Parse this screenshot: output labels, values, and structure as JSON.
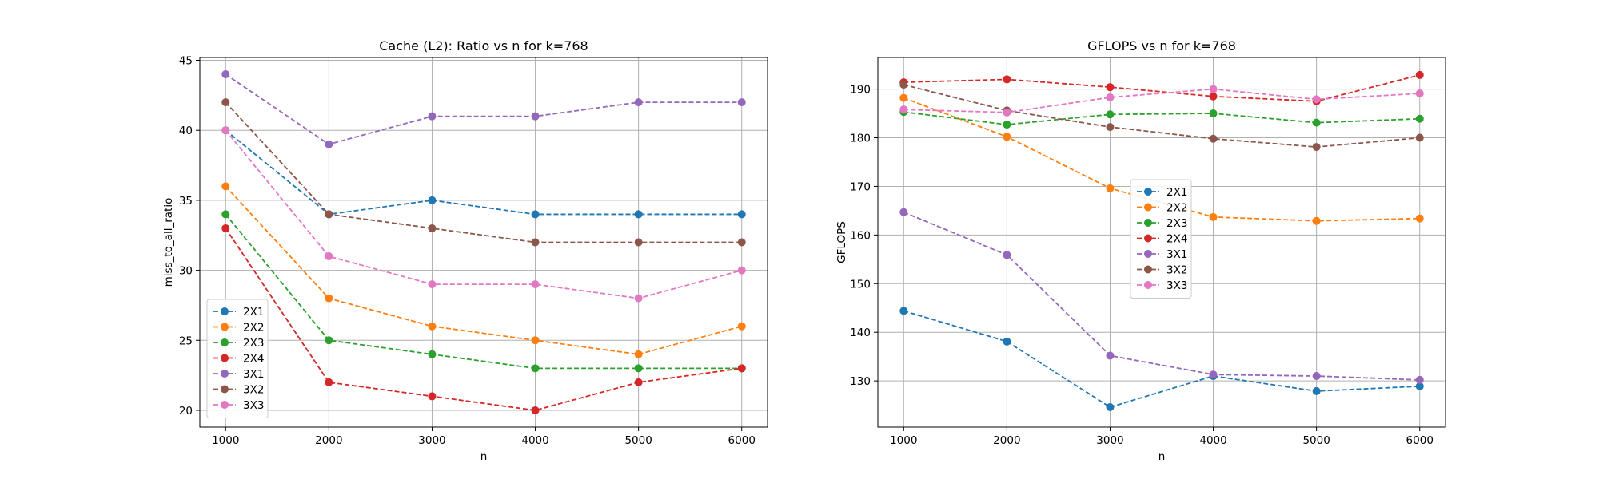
{
  "chart_data": [
    {
      "type": "line",
      "title": "Cache (L2): Ratio vs n for k=768",
      "xlabel": "n",
      "ylabel": "miss_to_all_ratio",
      "x": [
        1000,
        2000,
        3000,
        4000,
        5000,
        6000
      ],
      "xlim": [
        750,
        6250
      ],
      "ylim": [
        18.8,
        45.2
      ],
      "yticks": [
        20,
        25,
        30,
        35,
        40,
        45
      ],
      "grid": true,
      "legend": "lower-left",
      "series": [
        {
          "name": "2X1",
          "color": "#1f77b4",
          "values": [
            40,
            34,
            35,
            34,
            34,
            34
          ]
        },
        {
          "name": "2X2",
          "color": "#ff7f0e",
          "values": [
            36,
            28,
            26,
            25,
            24,
            26
          ]
        },
        {
          "name": "2X3",
          "color": "#2ca02c",
          "values": [
            34,
            25,
            24,
            23,
            23,
            23
          ]
        },
        {
          "name": "2X4",
          "color": "#d62728",
          "values": [
            33,
            22,
            21,
            20,
            22,
            23
          ]
        },
        {
          "name": "3X1",
          "color": "#9467bd",
          "values": [
            44,
            39,
            41,
            41,
            42,
            42
          ]
        },
        {
          "name": "3X2",
          "color": "#8c564b",
          "values": [
            42,
            34,
            33,
            32,
            32,
            32
          ]
        },
        {
          "name": "3X3",
          "color": "#e377c2",
          "values": [
            40,
            31,
            29,
            29,
            28,
            30
          ]
        }
      ]
    },
    {
      "type": "line",
      "title": "GFLOPS vs n for k=768",
      "xlabel": "n",
      "ylabel": "GFLOPS",
      "x": [
        1000,
        2000,
        3000,
        4000,
        5000,
        6000
      ],
      "xlim": [
        750,
        6250
      ],
      "ylim": [
        120.5,
        196.5
      ],
      "yticks": [
        130,
        140,
        150,
        160,
        170,
        180,
        190
      ],
      "grid": true,
      "legend": "center",
      "series": [
        {
          "name": "2X1",
          "color": "#1f77b4",
          "values": [
            144.4,
            138.1,
            124.6,
            131.0,
            127.9,
            128.9
          ]
        },
        {
          "name": "2X2",
          "color": "#ff7f0e",
          "values": [
            188.2,
            180.2,
            169.6,
            163.7,
            162.9,
            163.4
          ]
        },
        {
          "name": "2X3",
          "color": "#2ca02c",
          "values": [
            185.3,
            182.7,
            184.8,
            185.0,
            183.1,
            183.9
          ]
        },
        {
          "name": "2X4",
          "color": "#d62728",
          "values": [
            191.4,
            192.0,
            190.4,
            188.5,
            187.5,
            192.9
          ]
        },
        {
          "name": "3X1",
          "color": "#9467bd",
          "values": [
            164.7,
            155.9,
            135.2,
            131.3,
            131.0,
            130.2
          ]
        },
        {
          "name": "3X2",
          "color": "#8c564b",
          "values": [
            190.9,
            185.6,
            182.2,
            179.8,
            178.1,
            180.0
          ]
        },
        {
          "name": "3X3",
          "color": "#e377c2",
          "values": [
            185.8,
            185.2,
            188.3,
            190.0,
            187.9,
            189.1
          ]
        }
      ]
    }
  ]
}
